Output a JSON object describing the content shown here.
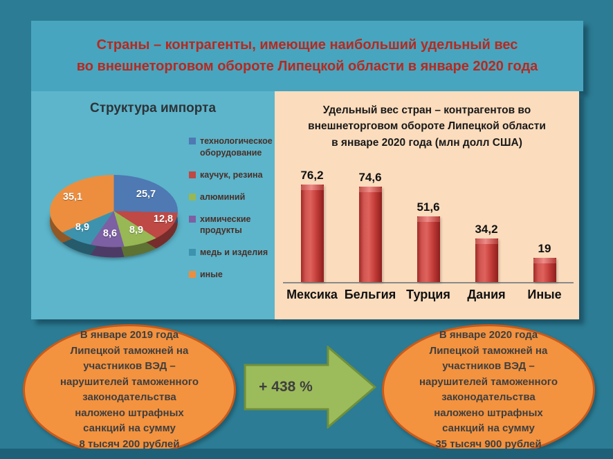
{
  "slide": {
    "title": "Страны – контрагенты, имеющие  наибольший удельный вес\nво внешнеторговом обороте Липецкой области в январе  2020 года",
    "title_color": "#B7291F",
    "background_color": "#2B7C94",
    "header_color": "#48A5BF"
  },
  "chart_data": [
    {
      "type": "pie",
      "style": "3d",
      "title": "Структура импорта",
      "labels": [
        "технологическое оборудование",
        "каучук, резина",
        "алюминий",
        "химические продукты",
        "медь и изделия",
        "иные"
      ],
      "values": [
        25.7,
        12.8,
        8.9,
        8.6,
        8.9,
        35.1
      ],
      "value_labels": [
        "25,7",
        "12,8",
        "8,9",
        "8,6",
        "8,9",
        "35,1"
      ],
      "colors": [
        "#4E79B3",
        "#BE4945",
        "#97B854",
        "#7D5FA3",
        "#3D93AE",
        "#EC8E3E"
      ],
      "legend_position": "right",
      "panel_color": "#5CB5CB"
    },
    {
      "type": "bar",
      "title": "Удельный вес стран – контрагентов во\nвнешнеторговом обороте Липецкой области\nв январе 2020 года (млн долл США)",
      "categories": [
        "Мексика",
        "Бельгия",
        "Турция",
        "Дания",
        "Иные"
      ],
      "values": [
        76.2,
        74.6,
        51.6,
        34.2,
        19
      ],
      "value_labels": [
        "76,2",
        "74,6",
        "51,6",
        "34,2",
        "19"
      ],
      "bar_color": "#C23B38",
      "ylim": [
        0,
        80
      ],
      "grid": false,
      "panel_color": "#FBDCBD"
    }
  ],
  "summary": {
    "left_text": "В январе 2019 года\nЛипецкой таможней на\nучастников ВЭД –\nнарушителей таможенного\nзаконодательства\nналожено штрафных\nсанкций на сумму\n8 тысяч 200 рублей",
    "right_text": "В январе 2020 года\nЛипецкой таможней на\nучастников ВЭД –\nнарушителей таможенного\nзаконодательства\nналожено штрафных\nсанкций на сумму\n35 тысяч 900 рублей",
    "arrow_label": "+ 438 %",
    "ellipse_color": "#F3923F",
    "arrow_color": "#9CBB5B"
  }
}
